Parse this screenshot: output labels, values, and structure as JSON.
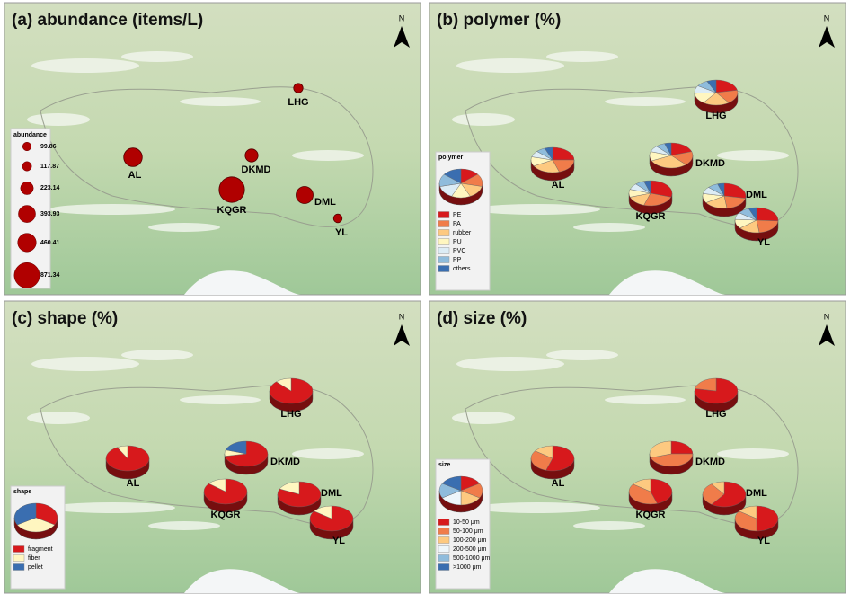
{
  "north": "N",
  "sites": [
    {
      "name": "LHG",
      "abundance": 117.87,
      "polymer": [
        22,
        18,
        20,
        14,
        10,
        9,
        7
      ],
      "shape": [
        88,
        12,
        0
      ],
      "size": [
        78,
        22,
        0,
        0,
        0,
        0
      ]
    },
    {
      "name": "AL",
      "abundance": 460.41,
      "polymer": [
        25,
        20,
        22,
        12,
        8,
        7,
        6
      ],
      "shape": [
        92,
        8,
        0
      ],
      "size": [
        55,
        30,
        15,
        0,
        0,
        0
      ]
    },
    {
      "name": "DKMD",
      "abundance": 223.14,
      "polymer": [
        20,
        18,
        30,
        12,
        8,
        7,
        5
      ],
      "shape": [
        72,
        8,
        20
      ],
      "size": [
        25,
        45,
        30,
        0,
        0,
        0
      ]
    },
    {
      "name": "KQGR",
      "abundance": 871.34,
      "polymer": [
        30,
        25,
        15,
        10,
        8,
        7,
        5
      ],
      "shape": [
        86,
        14,
        0
      ],
      "size": [
        45,
        40,
        15,
        0,
        0,
        0
      ]
    },
    {
      "name": "DML",
      "abundance": 393.93,
      "polymer": [
        28,
        20,
        18,
        12,
        9,
        8,
        5
      ],
      "shape": [
        82,
        18,
        0
      ],
      "size": [
        60,
        30,
        10,
        0,
        0,
        0
      ]
    },
    {
      "name": "YL",
      "abundance": 99.86,
      "polymer": [
        26,
        22,
        16,
        12,
        9,
        9,
        6
      ],
      "shape": [
        85,
        15,
        0
      ],
      "size": [
        50,
        35,
        15,
        0,
        0,
        0
      ]
    }
  ],
  "panels": [
    {
      "title": "(a) abundance (items/L)",
      "mode": "abundance",
      "legend_title": "abundance",
      "legend": [
        99.86,
        117.87,
        223.14,
        393.93,
        460.41,
        871.34
      ],
      "color": "#b00000"
    },
    {
      "title": "(b) polymer (%)",
      "mode": "polymer",
      "legend_title": "polymer",
      "legend": [
        {
          "label": "PE",
          "color": "#d7191c"
        },
        {
          "label": "PA",
          "color": "#f07c4a"
        },
        {
          "label": "rubber",
          "color": "#fdc980"
        },
        {
          "label": "PU",
          "color": "#fff6c0"
        },
        {
          "label": "PVC",
          "color": "#dcecf5"
        },
        {
          "label": "PP",
          "color": "#8fbcdc"
        },
        {
          "label": "others",
          "color": "#3a6eb0"
        }
      ]
    },
    {
      "title": "(c) shape (%)",
      "mode": "shape",
      "legend_title": "shape",
      "legend": [
        {
          "label": "fragment",
          "color": "#d7191c"
        },
        {
          "label": "fiber",
          "color": "#fff6c0"
        },
        {
          "label": "pellet",
          "color": "#3a6eb0"
        }
      ]
    },
    {
      "title": "(d) size (%)",
      "mode": "size",
      "legend_title": "size",
      "legend": [
        {
          "label": "10-50 μm",
          "color": "#d7191c"
        },
        {
          "label": "50-100 μm",
          "color": "#f07c4a"
        },
        {
          "label": "100-200 μm",
          "color": "#fdc980"
        },
        {
          "label": "200-500 μm",
          "color": "#eef6fa"
        },
        {
          "label": "500-1000 μm",
          "color": "#8fbcdc"
        },
        {
          "label": ">1000 μm",
          "color": "#3a6eb0"
        }
      ]
    }
  ]
}
